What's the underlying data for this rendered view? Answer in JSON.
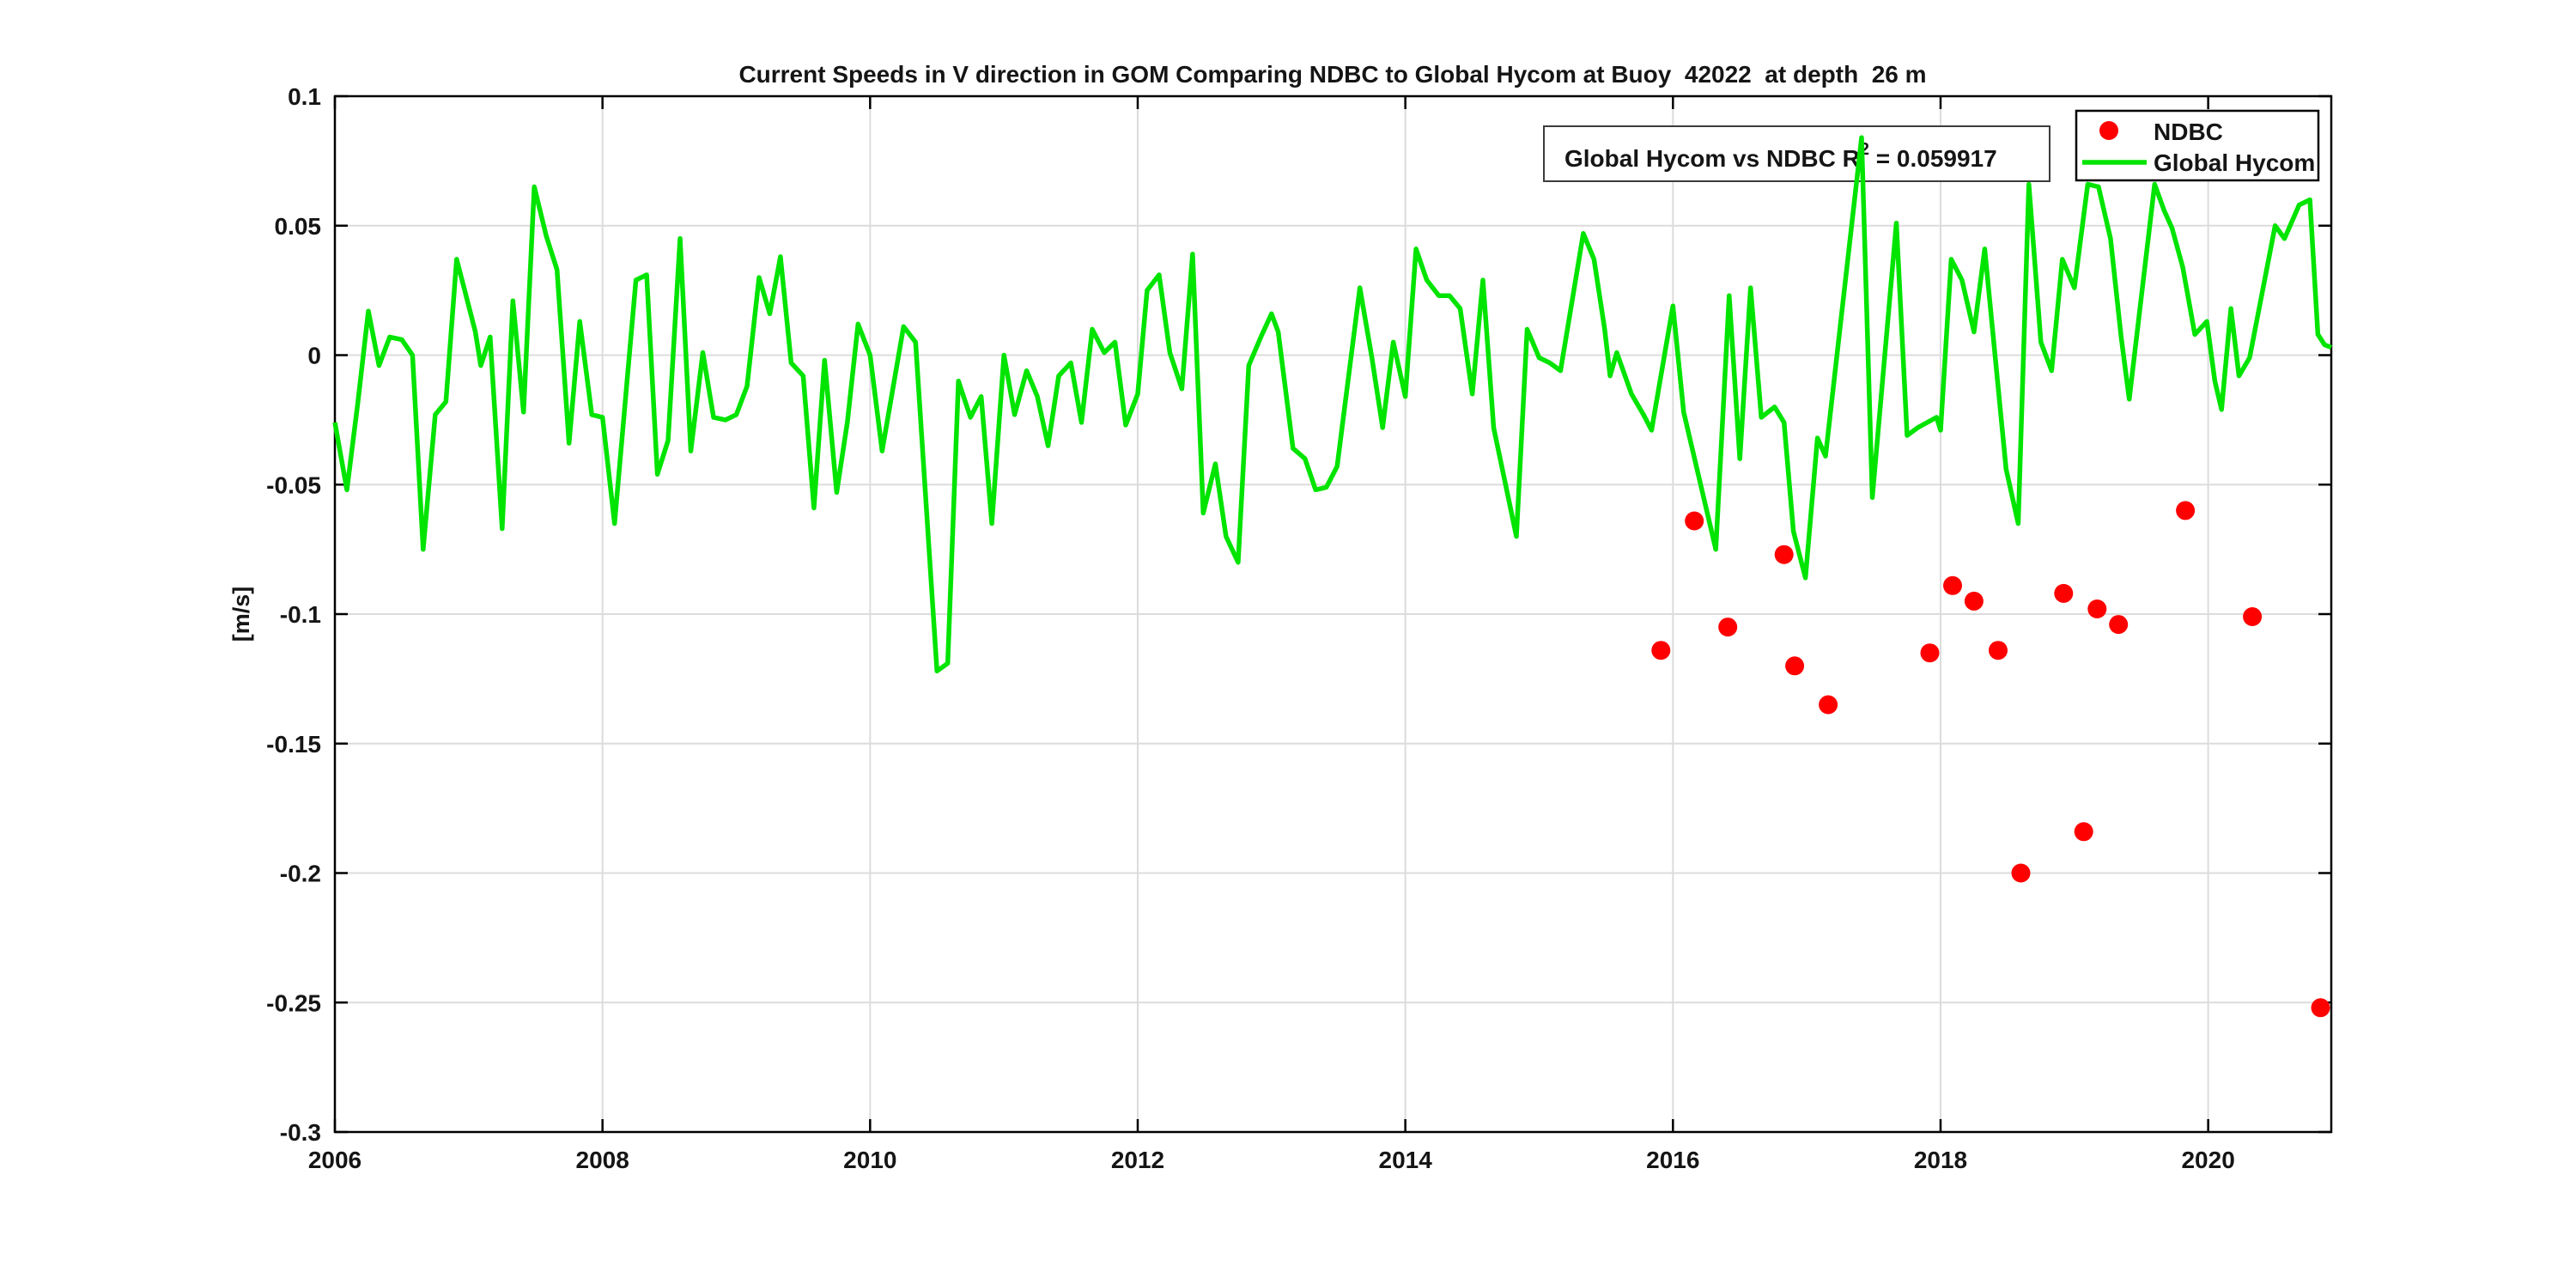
{
  "annotation": {
    "prefix": "Global Hycom vs NDBC R",
    "superscript": "2",
    "suffix": " = 0.059917"
  },
  "legend": {
    "items": [
      {
        "label": "NDBC",
        "marker": "dot-icon",
        "color": "#ff0000"
      },
      {
        "label": "Global Hycom",
        "marker": "line-icon",
        "color": "#00e400"
      }
    ]
  },
  "chart_data": {
    "type": "line+scatter",
    "title": "Current Speeds in V direction in GOM Comparing NDBC to Global Hycom at Buoy  42022  at depth  26 m",
    "xlabel": "",
    "ylabel": "[m/s]",
    "xlim": [
      2006,
      2020.92
    ],
    "ylim": [
      -0.3,
      0.1
    ],
    "x_ticks": [
      2006,
      2008,
      2010,
      2012,
      2014,
      2016,
      2018,
      2020
    ],
    "x_tick_labels": [
      "2006",
      "2008",
      "2010",
      "2012",
      "2014",
      "2016",
      "2018",
      "2020"
    ],
    "y_ticks": [
      0.1,
      0.05,
      0,
      -0.05,
      -0.1,
      -0.15,
      -0.2,
      -0.25,
      -0.3
    ],
    "y_tick_labels": [
      "0.1",
      "0.05",
      "0",
      "-0.05",
      "-0.1",
      "-0.15",
      "-0.2",
      "-0.25",
      "-0.3"
    ],
    "grid": true,
    "legend_position": "top-right",
    "colors": {
      "grid": "#dcdcdc",
      "axis": "#000000",
      "background": "#ffffff"
    },
    "series": [
      {
        "name": "NDBC",
        "type": "scatter",
        "color": "#ff0000",
        "points": [
          [
            2015.91,
            -0.114
          ],
          [
            2016.16,
            -0.064
          ],
          [
            2016.41,
            -0.105
          ],
          [
            2016.83,
            -0.077
          ],
          [
            2016.91,
            -0.12
          ],
          [
            2017.16,
            -0.135
          ],
          [
            2017.92,
            -0.115
          ],
          [
            2018.09,
            -0.089
          ],
          [
            2018.25,
            -0.095
          ],
          [
            2018.43,
            -0.114
          ],
          [
            2018.6,
            -0.2
          ],
          [
            2018.92,
            -0.092
          ],
          [
            2019.07,
            -0.184
          ],
          [
            2019.17,
            -0.098
          ],
          [
            2019.33,
            -0.104
          ],
          [
            2019.83,
            -0.06
          ],
          [
            2020.33,
            -0.101
          ],
          [
            2020.84,
            -0.252
          ]
        ]
      },
      {
        "name": "Global Hycom",
        "type": "line",
        "color": "#00e400",
        "points": [
          [
            2006.0,
            -0.026
          ],
          [
            2006.09,
            -0.052
          ],
          [
            2006.17,
            -0.019
          ],
          [
            2006.25,
            0.017
          ],
          [
            2006.33,
            -0.004
          ],
          [
            2006.41,
            0.007
          ],
          [
            2006.5,
            0.006
          ],
          [
            2006.58,
            0.0
          ],
          [
            2006.66,
            -0.075
          ],
          [
            2006.75,
            -0.023
          ],
          [
            2006.83,
            -0.018
          ],
          [
            2006.91,
            0.037
          ],
          [
            2006.97,
            0.025
          ],
          [
            2007.05,
            0.009
          ],
          [
            2007.09,
            -0.004
          ],
          [
            2007.16,
            0.007
          ],
          [
            2007.25,
            -0.067
          ],
          [
            2007.33,
            0.021
          ],
          [
            2007.41,
            -0.022
          ],
          [
            2007.49,
            0.065
          ],
          [
            2007.58,
            0.046
          ],
          [
            2007.66,
            0.033
          ],
          [
            2007.75,
            -0.034
          ],
          [
            2007.83,
            0.013
          ],
          [
            2007.92,
            -0.023
          ],
          [
            2008.0,
            -0.024
          ],
          [
            2008.09,
            -0.065
          ],
          [
            2008.25,
            0.029
          ],
          [
            2008.33,
            0.031
          ],
          [
            2008.41,
            -0.046
          ],
          [
            2008.49,
            -0.033
          ],
          [
            2008.58,
            0.045
          ],
          [
            2008.66,
            -0.037
          ],
          [
            2008.75,
            0.001
          ],
          [
            2008.83,
            -0.024
          ],
          [
            2008.92,
            -0.025
          ],
          [
            2009.0,
            -0.023
          ],
          [
            2009.08,
            -0.012
          ],
          [
            2009.17,
            0.03
          ],
          [
            2009.25,
            0.016
          ],
          [
            2009.33,
            0.038
          ],
          [
            2009.41,
            -0.003
          ],
          [
            2009.5,
            -0.008
          ],
          [
            2009.58,
            -0.059
          ],
          [
            2009.66,
            -0.002
          ],
          [
            2009.75,
            -0.053
          ],
          [
            2009.83,
            -0.026
          ],
          [
            2009.91,
            0.012
          ],
          [
            2010.0,
            0.0
          ],
          [
            2010.09,
            -0.037
          ],
          [
            2010.25,
            0.011
          ],
          [
            2010.34,
            0.005
          ],
          [
            2010.5,
            -0.122
          ],
          [
            2010.58,
            -0.119
          ],
          [
            2010.66,
            -0.01
          ],
          [
            2010.75,
            -0.024
          ],
          [
            2010.83,
            -0.016
          ],
          [
            2010.91,
            -0.065
          ],
          [
            2011.0,
            0.0
          ],
          [
            2011.08,
            -0.023
          ],
          [
            2011.17,
            -0.006
          ],
          [
            2011.25,
            -0.016
          ],
          [
            2011.33,
            -0.035
          ],
          [
            2011.41,
            -0.008
          ],
          [
            2011.5,
            -0.003
          ],
          [
            2011.58,
            -0.026
          ],
          [
            2011.66,
            0.01
          ],
          [
            2011.75,
            0.001
          ],
          [
            2011.83,
            0.005
          ],
          [
            2011.91,
            -0.027
          ],
          [
            2012.0,
            -0.015
          ],
          [
            2012.07,
            0.025
          ],
          [
            2012.16,
            0.031
          ],
          [
            2012.24,
            0.001
          ],
          [
            2012.33,
            -0.013
          ],
          [
            2012.41,
            0.039
          ],
          [
            2012.49,
            -0.061
          ],
          [
            2012.58,
            -0.042
          ],
          [
            2012.66,
            -0.07
          ],
          [
            2012.75,
            -0.08
          ],
          [
            2012.83,
            -0.004
          ],
          [
            2012.92,
            0.007
          ],
          [
            2013.0,
            0.016
          ],
          [
            2013.05,
            0.009
          ],
          [
            2013.16,
            -0.036
          ],
          [
            2013.25,
            -0.04
          ],
          [
            2013.33,
            -0.052
          ],
          [
            2013.41,
            -0.051
          ],
          [
            2013.49,
            -0.043
          ],
          [
            2013.66,
            0.026
          ],
          [
            2013.75,
            -0.001
          ],
          [
            2013.83,
            -0.028
          ],
          [
            2013.91,
            0.005
          ],
          [
            2014.0,
            -0.016
          ],
          [
            2014.08,
            0.041
          ],
          [
            2014.16,
            0.029
          ],
          [
            2014.25,
            0.023
          ],
          [
            2014.33,
            0.023
          ],
          [
            2014.41,
            0.018
          ],
          [
            2014.5,
            -0.015
          ],
          [
            2014.58,
            0.029
          ],
          [
            2014.66,
            -0.028
          ],
          [
            2014.83,
            -0.07
          ],
          [
            2014.91,
            0.01
          ],
          [
            2015.0,
            -0.001
          ],
          [
            2015.08,
            -0.003
          ],
          [
            2015.16,
            -0.006
          ],
          [
            2015.33,
            0.047
          ],
          [
            2015.41,
            0.037
          ],
          [
            2015.49,
            0.01
          ],
          [
            2015.53,
            -0.008
          ],
          [
            2015.58,
            0.001
          ],
          [
            2015.69,
            -0.015
          ],
          [
            2015.78,
            -0.023
          ],
          [
            2015.84,
            -0.029
          ],
          [
            2016.0,
            0.019
          ],
          [
            2016.08,
            -0.022
          ],
          [
            2016.32,
            -0.075
          ],
          [
            2016.42,
            0.023
          ],
          [
            2016.5,
            -0.04
          ],
          [
            2016.58,
            0.026
          ],
          [
            2016.66,
            -0.024
          ],
          [
            2016.76,
            -0.02
          ],
          [
            2016.83,
            -0.026
          ],
          [
            2016.9,
            -0.068
          ],
          [
            2016.99,
            -0.086
          ],
          [
            2017.08,
            -0.032
          ],
          [
            2017.14,
            -0.039
          ],
          [
            2017.41,
            0.084
          ],
          [
            2017.49,
            -0.055
          ],
          [
            2017.67,
            0.051
          ],
          [
            2017.75,
            -0.031
          ],
          [
            2017.83,
            -0.028
          ],
          [
            2017.97,
            -0.024
          ],
          [
            2018.0,
            -0.029
          ],
          [
            2018.08,
            0.037
          ],
          [
            2018.16,
            0.029
          ],
          [
            2018.25,
            0.009
          ],
          [
            2018.33,
            0.041
          ],
          [
            2018.49,
            -0.044
          ],
          [
            2018.58,
            -0.065
          ],
          [
            2018.66,
            0.066
          ],
          [
            2018.75,
            0.005
          ],
          [
            2018.83,
            -0.006
          ],
          [
            2018.91,
            0.037
          ],
          [
            2019.0,
            0.026
          ],
          [
            2019.1,
            0.066
          ],
          [
            2019.18,
            0.065
          ],
          [
            2019.27,
            0.045
          ],
          [
            2019.35,
            0.007
          ],
          [
            2019.41,
            -0.017
          ],
          [
            2019.6,
            0.066
          ],
          [
            2019.67,
            0.056
          ],
          [
            2019.73,
            0.049
          ],
          [
            2019.81,
            0.034
          ],
          [
            2019.9,
            0.008
          ],
          [
            2019.99,
            0.013
          ],
          [
            2020.05,
            -0.01
          ],
          [
            2020.1,
            -0.021
          ],
          [
            2020.17,
            0.018
          ],
          [
            2020.23,
            -0.008
          ],
          [
            2020.31,
            -0.001
          ],
          [
            2020.5,
            0.05
          ],
          [
            2020.57,
            0.045
          ],
          [
            2020.68,
            0.058
          ],
          [
            2020.76,
            0.06
          ],
          [
            2020.82,
            0.008
          ],
          [
            2020.87,
            0.004
          ],
          [
            2020.92,
            0.003
          ]
        ]
      }
    ]
  }
}
